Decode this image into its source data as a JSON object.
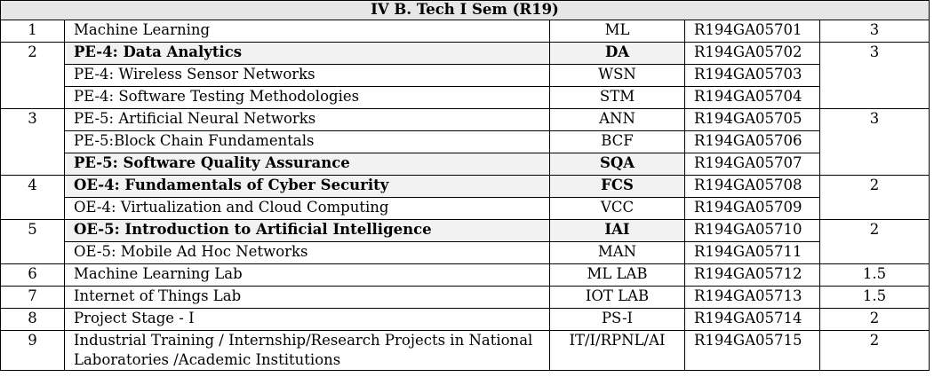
{
  "header": "IV B. Tech  I Sem (R19)",
  "rows": [
    {
      "sno": "1",
      "subject": "Machine Learning",
      "code": "ML",
      "course": "R194GA05701",
      "credits": "3",
      "bold": false
    },
    {
      "sno": "2",
      "subject": "PE-4: Data Analytics",
      "code": "DA",
      "course": "R194GA05702",
      "credits": "3",
      "bold": true
    },
    {
      "sno": "",
      "subject": "PE-4: Wireless Sensor Networks",
      "code": "WSN",
      "course": "R194GA05703",
      "credits": "",
      "bold": false
    },
    {
      "sno": "",
      "subject": "PE-4: Software Testing Methodologies",
      "code": "STM",
      "course": "R194GA05704",
      "credits": "",
      "bold": false
    },
    {
      "sno": "3",
      "subject": "PE-5: Artificial Neural Networks",
      "code": "ANN",
      "course": "R194GA05705",
      "credits": "3",
      "bold": false
    },
    {
      "sno": "",
      "subject": "PE-5:Block Chain Fundamentals",
      "code": "BCF",
      "course": "R194GA05706",
      "credits": "",
      "bold": false
    },
    {
      "sno": "",
      "subject": "PE-5: Software Quality Assurance",
      "code": "SQA",
      "course": "R194GA05707",
      "credits": "",
      "bold": true
    },
    {
      "sno": "4",
      "subject": "OE-4: Fundamentals of Cyber Security",
      "code": "FCS",
      "course": "R194GA05708",
      "credits": "2",
      "bold": true
    },
    {
      "sno": "",
      "subject": "OE-4: Virtualization and Cloud Computing",
      "code": "VCC",
      "course": "R194GA05709",
      "credits": "",
      "bold": false
    },
    {
      "sno": "5",
      "subject": "OE-5: Introduction to Artificial Intelligence",
      "code": "IAI",
      "course": "R194GA05710",
      "credits": "2",
      "bold": true
    },
    {
      "sno": "",
      "subject": "OE-5: Mobile Ad Hoc Networks",
      "code": "MAN",
      "course": "R194GA05711",
      "credits": "",
      "bold": false
    },
    {
      "sno": "6",
      "subject": "Machine Learning Lab",
      "code": "ML LAB",
      "course": "R194GA05712",
      "credits": "1.5",
      "bold": false
    },
    {
      "sno": "7",
      "subject": "Internet of Things Lab",
      "code": "IOT LAB",
      "course": "R194GA05713",
      "credits": "1.5",
      "bold": false
    },
    {
      "sno": "8",
      "subject": "Project Stage - I",
      "code": "PS-I",
      "course": "R194GA05714",
      "credits": "2",
      "bold": false
    },
    {
      "sno": "9",
      "subject": "Industrial Training / Internship/Research Projects in National Laboratories /Academic Institutions",
      "code": "IT/I/RPNL/AI",
      "course": "R194GA05715",
      "credits": "2",
      "bold": false
    }
  ]
}
